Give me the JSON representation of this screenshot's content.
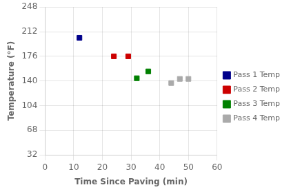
{
  "chart_data": {
    "type": "scatter",
    "xlabel": "Time Since Paving (min)",
    "ylabel": "Temperature (°F)",
    "xlim": [
      0,
      60
    ],
    "ylim": [
      32,
      248
    ],
    "xticks": [
      0,
      10,
      20,
      30,
      40,
      50,
      60
    ],
    "yticks": [
      32,
      68,
      104,
      140,
      176,
      212,
      248
    ],
    "series": [
      {
        "name": "Pass 1 Temp",
        "color": "#00008B",
        "x": [
          12
        ],
        "values": [
          203
        ]
      },
      {
        "name": "Pass 2 Temp",
        "color": "#CC0000",
        "x": [
          24,
          29
        ],
        "values": [
          176,
          176
        ]
      },
      {
        "name": "Pass 3 Temp",
        "color": "#008000",
        "x": [
          32,
          36
        ],
        "values": [
          144,
          154
        ]
      },
      {
        "name": "Pass 4 Temp",
        "color": "#AAAAAA",
        "x": [
          44,
          47,
          50
        ],
        "values": [
          137,
          143,
          143
        ]
      }
    ],
    "marker": "square",
    "grid": true,
    "legend": "right"
  }
}
